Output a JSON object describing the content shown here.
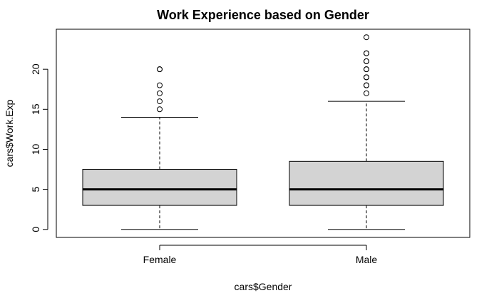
{
  "chart_data": {
    "type": "boxplot",
    "title": "Work Experience based on Gender",
    "xlabel": "cars$Gender",
    "ylabel": "cars$Work.Exp",
    "categories": [
      "Female",
      "Male"
    ],
    "ylim": [
      -1,
      25
    ],
    "yticks": [
      0,
      5,
      10,
      15,
      20
    ],
    "grid": false,
    "box_fill": "#d3d3d3",
    "boxes": [
      {
        "category": "Female",
        "whisker_low": 0,
        "q1": 3,
        "median": 5,
        "q3": 7.5,
        "whisker_high": 14,
        "outliers": [
          15,
          16,
          17,
          18,
          20,
          20
        ]
      },
      {
        "category": "Male",
        "whisker_low": 0,
        "q1": 3,
        "median": 5,
        "q3": 8.5,
        "whisker_high": 16,
        "outliers": [
          17,
          18,
          18,
          19,
          19,
          20,
          20,
          21,
          21,
          22,
          22,
          24
        ]
      }
    ]
  }
}
